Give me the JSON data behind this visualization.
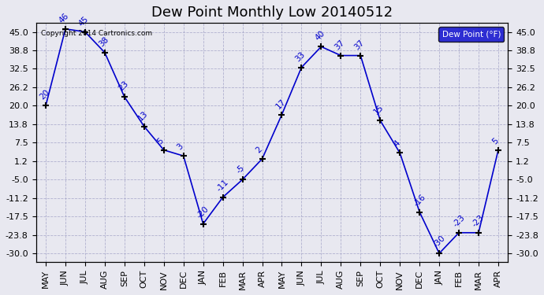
{
  "title": "Dew Point Monthly Low 20140512",
  "copyright": "Copyright 2014 Cartronics.com",
  "legend_label": "Dew Point (°F)",
  "x_labels": [
    "MAY",
    "JUN",
    "JUL",
    "AUG",
    "SEP",
    "OCT",
    "NOV",
    "DEC",
    "JAN",
    "FEB",
    "MAR",
    "APR",
    "MAY",
    "JUN",
    "JUL",
    "AUG",
    "SEP",
    "OCT",
    "NOV",
    "DEC",
    "JAN",
    "FEB",
    "MAR",
    "APR"
  ],
  "y_values": [
    20,
    46,
    45,
    38,
    23,
    13,
    5,
    3,
    -20,
    -11,
    -5,
    2,
    17,
    33,
    40,
    37,
    37,
    15,
    4,
    -16,
    -30,
    -23,
    -23,
    5
  ],
  "point_labels": [
    "20",
    "46",
    "45",
    "38",
    "23",
    "13",
    "5",
    "3",
    "-20",
    "-11",
    "-5",
    "2",
    "17",
    "33",
    "40",
    "37",
    "37",
    "15",
    "4",
    "-16",
    "-30",
    "-23",
    "-23",
    "5"
  ],
  "y_ticks": [
    45.0,
    38.8,
    32.5,
    26.2,
    20.0,
    13.8,
    7.5,
    1.2,
    -5.0,
    -11.2,
    -17.5,
    -23.8,
    -30.0
  ],
  "ylim": [
    -33,
    48
  ],
  "line_color": "#0000CC",
  "marker_color": "#000000",
  "grid_color": "#AAAACC",
  "bg_color": "#E8E8F0",
  "title_fontsize": 13,
  "label_fontsize": 7.5,
  "tick_fontsize": 8,
  "legend_bg": "#0000CC",
  "legend_text_color": "#FFFFFF"
}
